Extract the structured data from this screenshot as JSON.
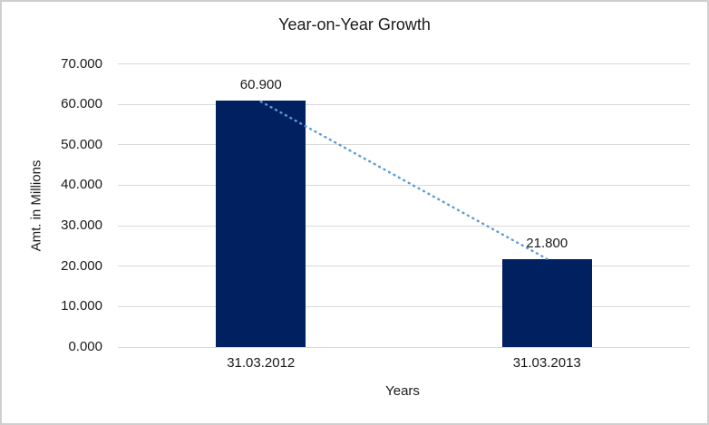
{
  "frame": {
    "border_color": "#cfcfcf",
    "background": "#ffffff"
  },
  "chart_data": {
    "type": "bar",
    "title": "Year-on-Year Growth",
    "xlabel": "Years",
    "ylabel": "Amt. in Millions",
    "categories": [
      "31.03.2012",
      "31.03.2013"
    ],
    "values": [
      60.9,
      21.8
    ],
    "data_labels": [
      "60.900",
      "21.800"
    ],
    "yticks": [
      "0.000",
      "10.000",
      "20.000",
      "30.000",
      "40.000",
      "50.000",
      "60.000",
      "70.000"
    ],
    "ylim": [
      0,
      70
    ],
    "grid": true,
    "legend": "none",
    "trendline": {
      "style": "dotted",
      "connects": [
        "31.03.2012",
        "31.03.2013"
      ]
    },
    "colors": {
      "bar": "#002060",
      "trendline": "#5b9bd5",
      "gridline": "#d9d9d9",
      "text": "#1a1a1a"
    }
  }
}
